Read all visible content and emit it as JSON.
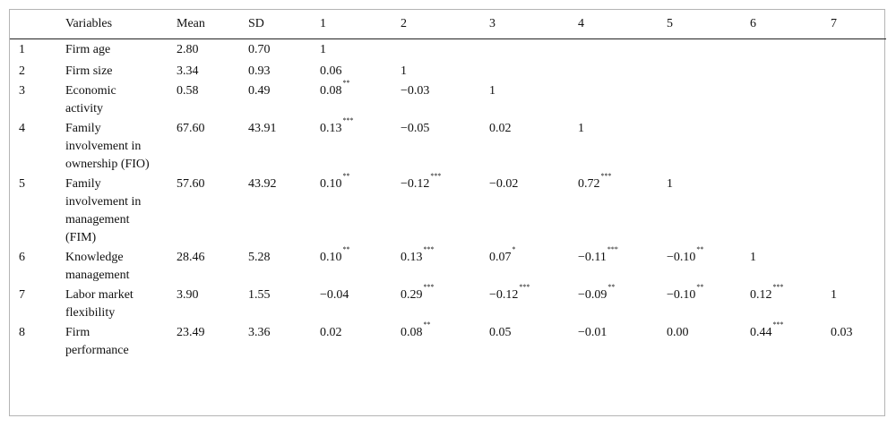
{
  "table": {
    "headers": [
      "",
      "Variables",
      "Mean",
      "SD",
      "1",
      "2",
      "3",
      "4",
      "5",
      "6",
      "7"
    ],
    "rows": [
      {
        "num": "1",
        "variable": "Firm age",
        "mean": "2.80",
        "sd": "0.70",
        "c1": {
          "v": "1",
          "s": ""
        },
        "c2": {
          "v": "",
          "s": ""
        },
        "c3": {
          "v": "",
          "s": ""
        },
        "c4": {
          "v": "",
          "s": ""
        },
        "c5": {
          "v": "",
          "s": ""
        },
        "c6": {
          "v": "",
          "s": ""
        },
        "c7": {
          "v": "",
          "s": ""
        }
      },
      {
        "num": "2",
        "variable": "Firm size",
        "mean": "3.34",
        "sd": "0.93",
        "c1": {
          "v": "0.06",
          "s": ""
        },
        "c2": {
          "v": "1",
          "s": ""
        },
        "c3": {
          "v": "",
          "s": ""
        },
        "c4": {
          "v": "",
          "s": ""
        },
        "c5": {
          "v": "",
          "s": ""
        },
        "c6": {
          "v": "",
          "s": ""
        },
        "c7": {
          "v": "",
          "s": ""
        }
      },
      {
        "num": "3",
        "variable": "Economic activity",
        "mean": "0.58",
        "sd": "0.49",
        "c1": {
          "v": "0.08",
          "s": "**"
        },
        "c2": {
          "v": "−0.03",
          "s": ""
        },
        "c3": {
          "v": "1",
          "s": ""
        },
        "c4": {
          "v": "",
          "s": ""
        },
        "c5": {
          "v": "",
          "s": ""
        },
        "c6": {
          "v": "",
          "s": ""
        },
        "c7": {
          "v": "",
          "s": ""
        }
      },
      {
        "num": "4",
        "variable": "Family involvement in ownership (FIO)",
        "mean": "67.60",
        "sd": "43.91",
        "c1": {
          "v": "0.13",
          "s": "***"
        },
        "c2": {
          "v": "−0.05",
          "s": ""
        },
        "c3": {
          "v": "0.02",
          "s": ""
        },
        "c4": {
          "v": "1",
          "s": ""
        },
        "c5": {
          "v": "",
          "s": ""
        },
        "c6": {
          "v": "",
          "s": ""
        },
        "c7": {
          "v": "",
          "s": ""
        }
      },
      {
        "num": "5",
        "variable": "Family involvement in management (FIM)",
        "mean": "57.60",
        "sd": "43.92",
        "c1": {
          "v": "0.10",
          "s": "**"
        },
        "c2": {
          "v": "−0.12",
          "s": "***"
        },
        "c3": {
          "v": "−0.02",
          "s": ""
        },
        "c4": {
          "v": "0.72",
          "s": "***"
        },
        "c5": {
          "v": "1",
          "s": ""
        },
        "c6": {
          "v": "",
          "s": ""
        },
        "c7": {
          "v": "",
          "s": ""
        }
      },
      {
        "num": "6",
        "variable": "Knowledge management",
        "mean": "28.46",
        "sd": "5.28",
        "c1": {
          "v": "0.10",
          "s": "**"
        },
        "c2": {
          "v": "0.13",
          "s": "***"
        },
        "c3": {
          "v": "0.07",
          "s": "*"
        },
        "c4": {
          "v": "−0.11",
          "s": "***"
        },
        "c5": {
          "v": "−0.10",
          "s": "**"
        },
        "c6": {
          "v": "1",
          "s": ""
        },
        "c7": {
          "v": "",
          "s": ""
        }
      },
      {
        "num": "7",
        "variable": "Labor market flexibility",
        "mean": "3.90",
        "sd": "1.55",
        "c1": {
          "v": "−0.04",
          "s": ""
        },
        "c2": {
          "v": "0.29",
          "s": "***"
        },
        "c3": {
          "v": "−0.12",
          "s": "***"
        },
        "c4": {
          "v": "−0.09",
          "s": "**"
        },
        "c5": {
          "v": "−0.10",
          "s": "**"
        },
        "c6": {
          "v": "0.12",
          "s": "***"
        },
        "c7": {
          "v": "1",
          "s": ""
        }
      },
      {
        "num": "8",
        "variable": "Firm performance",
        "mean": "23.49",
        "sd": "3.36",
        "c1": {
          "v": "0.02",
          "s": ""
        },
        "c2": {
          "v": "0.08",
          "s": "**"
        },
        "c3": {
          "v": "0.05",
          "s": ""
        },
        "c4": {
          "v": "−0.01",
          "s": ""
        },
        "c5": {
          "v": "0.00",
          "s": ""
        },
        "c6": {
          "v": "0.44",
          "s": "***"
        },
        "c7": {
          "v": "0.03",
          "s": ""
        }
      }
    ]
  }
}
